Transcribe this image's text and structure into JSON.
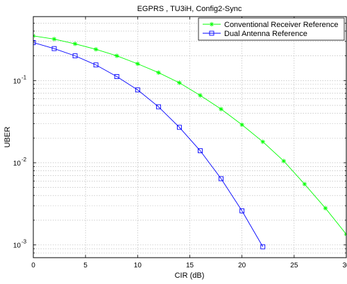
{
  "chart_data": {
    "type": "line",
    "title": "EGPRS , TU3iH, Config2-Sync",
    "xlabel": "CIR (dB)",
    "ylabel": "UBER",
    "xlim": [
      0,
      30
    ],
    "ylim": [
      0.0007,
      0.6
    ],
    "yscale": "log",
    "grid": true,
    "legend_position": "top-right",
    "x_ticks": [
      0,
      5,
      10,
      15,
      20,
      25,
      30
    ],
    "y_ticks": [
      {
        "value": 0.001,
        "base": "10",
        "exp": "-3"
      },
      {
        "value": 0.01,
        "base": "10",
        "exp": "-2"
      },
      {
        "value": 0.1,
        "base": "10",
        "exp": "-1"
      }
    ],
    "series": [
      {
        "name": "Conventional Receiver Reference",
        "color": "#00ff00",
        "marker": "asterisk",
        "x": [
          0,
          2,
          4,
          6,
          8,
          10,
          12,
          14,
          16,
          18,
          20,
          22,
          24,
          26,
          28,
          30
        ],
        "y": [
          0.35,
          0.32,
          0.28,
          0.24,
          0.2,
          0.16,
          0.125,
          0.094,
          0.066,
          0.045,
          0.029,
          0.018,
          0.0105,
          0.0055,
          0.0028,
          0.00135
        ]
      },
      {
        "name": "Dual Antenna Reference",
        "color": "#0000ff",
        "marker": "square",
        "x": [
          0,
          2,
          4,
          6,
          8,
          10,
          12,
          14,
          16,
          18,
          20,
          22
        ],
        "y": [
          0.29,
          0.245,
          0.2,
          0.155,
          0.112,
          0.077,
          0.048,
          0.027,
          0.014,
          0.0064,
          0.0026,
          0.00095
        ]
      }
    ]
  }
}
